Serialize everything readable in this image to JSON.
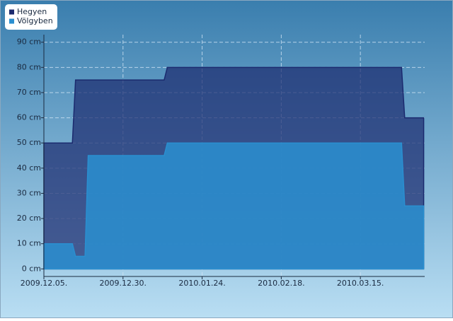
{
  "chart_data": {
    "type": "area",
    "x": [
      "2009-12-05",
      "2009-12-14",
      "2009-12-15",
      "2009-12-18",
      "2009-12-19",
      "2010-01-12",
      "2010-01-13",
      "2010-03-28",
      "2010-03-29",
      "2010-04-04"
    ],
    "series": [
      {
        "name": "Hegyen",
        "color": "#1b2a6e",
        "values": [
          50,
          50,
          75,
          75,
          75,
          75,
          80,
          80,
          60,
          60
        ]
      },
      {
        "name": "Völgyben",
        "color": "#2a8fd0",
        "values": [
          10,
          10,
          5,
          5,
          45,
          45,
          50,
          50,
          25,
          25
        ]
      }
    ],
    "xlim": [
      "2009-12-05",
      "2010-04-07"
    ],
    "xticks": [
      {
        "value": "2009-12-05",
        "label": "2009.12.05."
      },
      {
        "value": "2009-12-30",
        "label": "2009.12.30."
      },
      {
        "value": "2010-01-24",
        "label": "2010.01.24."
      },
      {
        "value": "2010-02-18",
        "label": "2010.02.18."
      },
      {
        "value": "2010-03-15",
        "label": "2010.03.15."
      }
    ],
    "ylim": [
      -3,
      93
    ],
    "yticks": [
      {
        "value": 0,
        "label": "0 cm"
      },
      {
        "value": 10,
        "label": "10 cm"
      },
      {
        "value": 20,
        "label": "20 cm"
      },
      {
        "value": 30,
        "label": "30 cm"
      },
      {
        "value": 40,
        "label": "40 cm"
      },
      {
        "value": 50,
        "label": "50 cm"
      },
      {
        "value": 60,
        "label": "60 cm"
      },
      {
        "value": 70,
        "label": "70 cm"
      },
      {
        "value": 80,
        "label": "80 cm"
      },
      {
        "value": 90,
        "label": "90 cm"
      }
    ],
    "grid": true,
    "legend": "top-left"
  }
}
